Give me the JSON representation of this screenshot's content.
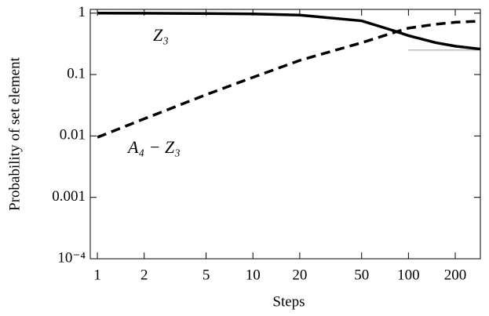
{
  "chart_data": {
    "type": "line",
    "xlabel": "Steps",
    "ylabel": "Probability of set element",
    "x": [
      1,
      2,
      5,
      10,
      20,
      50,
      80,
      100,
      150,
      200,
      290
    ],
    "series": [
      {
        "name": "Z₃",
        "color": "#000000",
        "dash": "solid",
        "values": [
          1,
          0.995,
          0.985,
          0.97,
          0.93,
          0.75,
          0.52,
          0.43,
          0.33,
          0.29,
          0.26
        ]
      },
      {
        "name": "A₄ − Z₃",
        "color": "#000000",
        "dash": "dashed",
        "values": [
          0.0095,
          0.019,
          0.047,
          0.09,
          0.17,
          0.33,
          0.48,
          0.57,
          0.66,
          0.71,
          0.74
        ]
      }
    ],
    "hlines": [
      {
        "y": 0.25,
        "xmin": 100,
        "xmax": 290,
        "color": "#999999"
      }
    ],
    "xscale": "log",
    "yscale": "log",
    "xlim": [
      0.9,
      290
    ],
    "ylim": [
      0.0001,
      1.15
    ],
    "xticks": [
      1,
      2,
      5,
      10,
      20,
      50,
      100,
      200
    ],
    "yticks": [
      {
        "value": 0.0001,
        "label": "10⁻⁴"
      },
      0.001,
      0.01,
      0.1,
      1
    ]
  }
}
